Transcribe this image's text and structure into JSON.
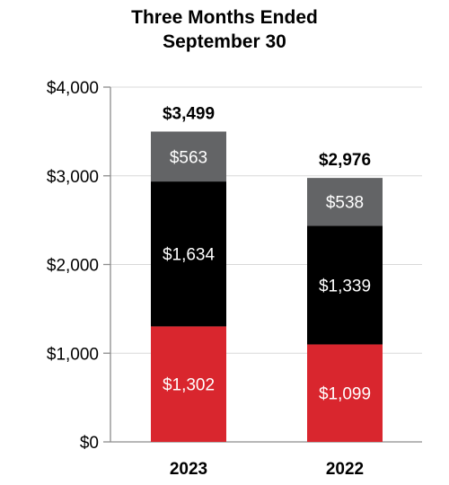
{
  "chart_data": {
    "type": "bar",
    "stacked": true,
    "title": [
      "Three Months Ended",
      "September 30"
    ],
    "categories": [
      "2023",
      "2022"
    ],
    "series": [
      {
        "values": [
          1302,
          1099
        ],
        "labels": [
          "$1,302",
          "$1,099"
        ],
        "color": "#d9262e"
      },
      {
        "values": [
          1634,
          1339
        ],
        "labels": [
          "$1,634",
          "$1,339"
        ],
        "color": "#000000"
      },
      {
        "values": [
          563,
          538
        ],
        "labels": [
          "$563",
          "$538"
        ],
        "color": "#636466"
      }
    ],
    "totals": [
      "$3,499",
      "$2,976"
    ],
    "yticks": [
      0,
      1000,
      2000,
      3000,
      4000
    ],
    "ytick_labels": [
      "$0",
      "$1,000",
      "$2,000",
      "$3,000",
      "$4,000"
    ],
    "ylim": [
      0,
      4000
    ],
    "grid": true
  }
}
